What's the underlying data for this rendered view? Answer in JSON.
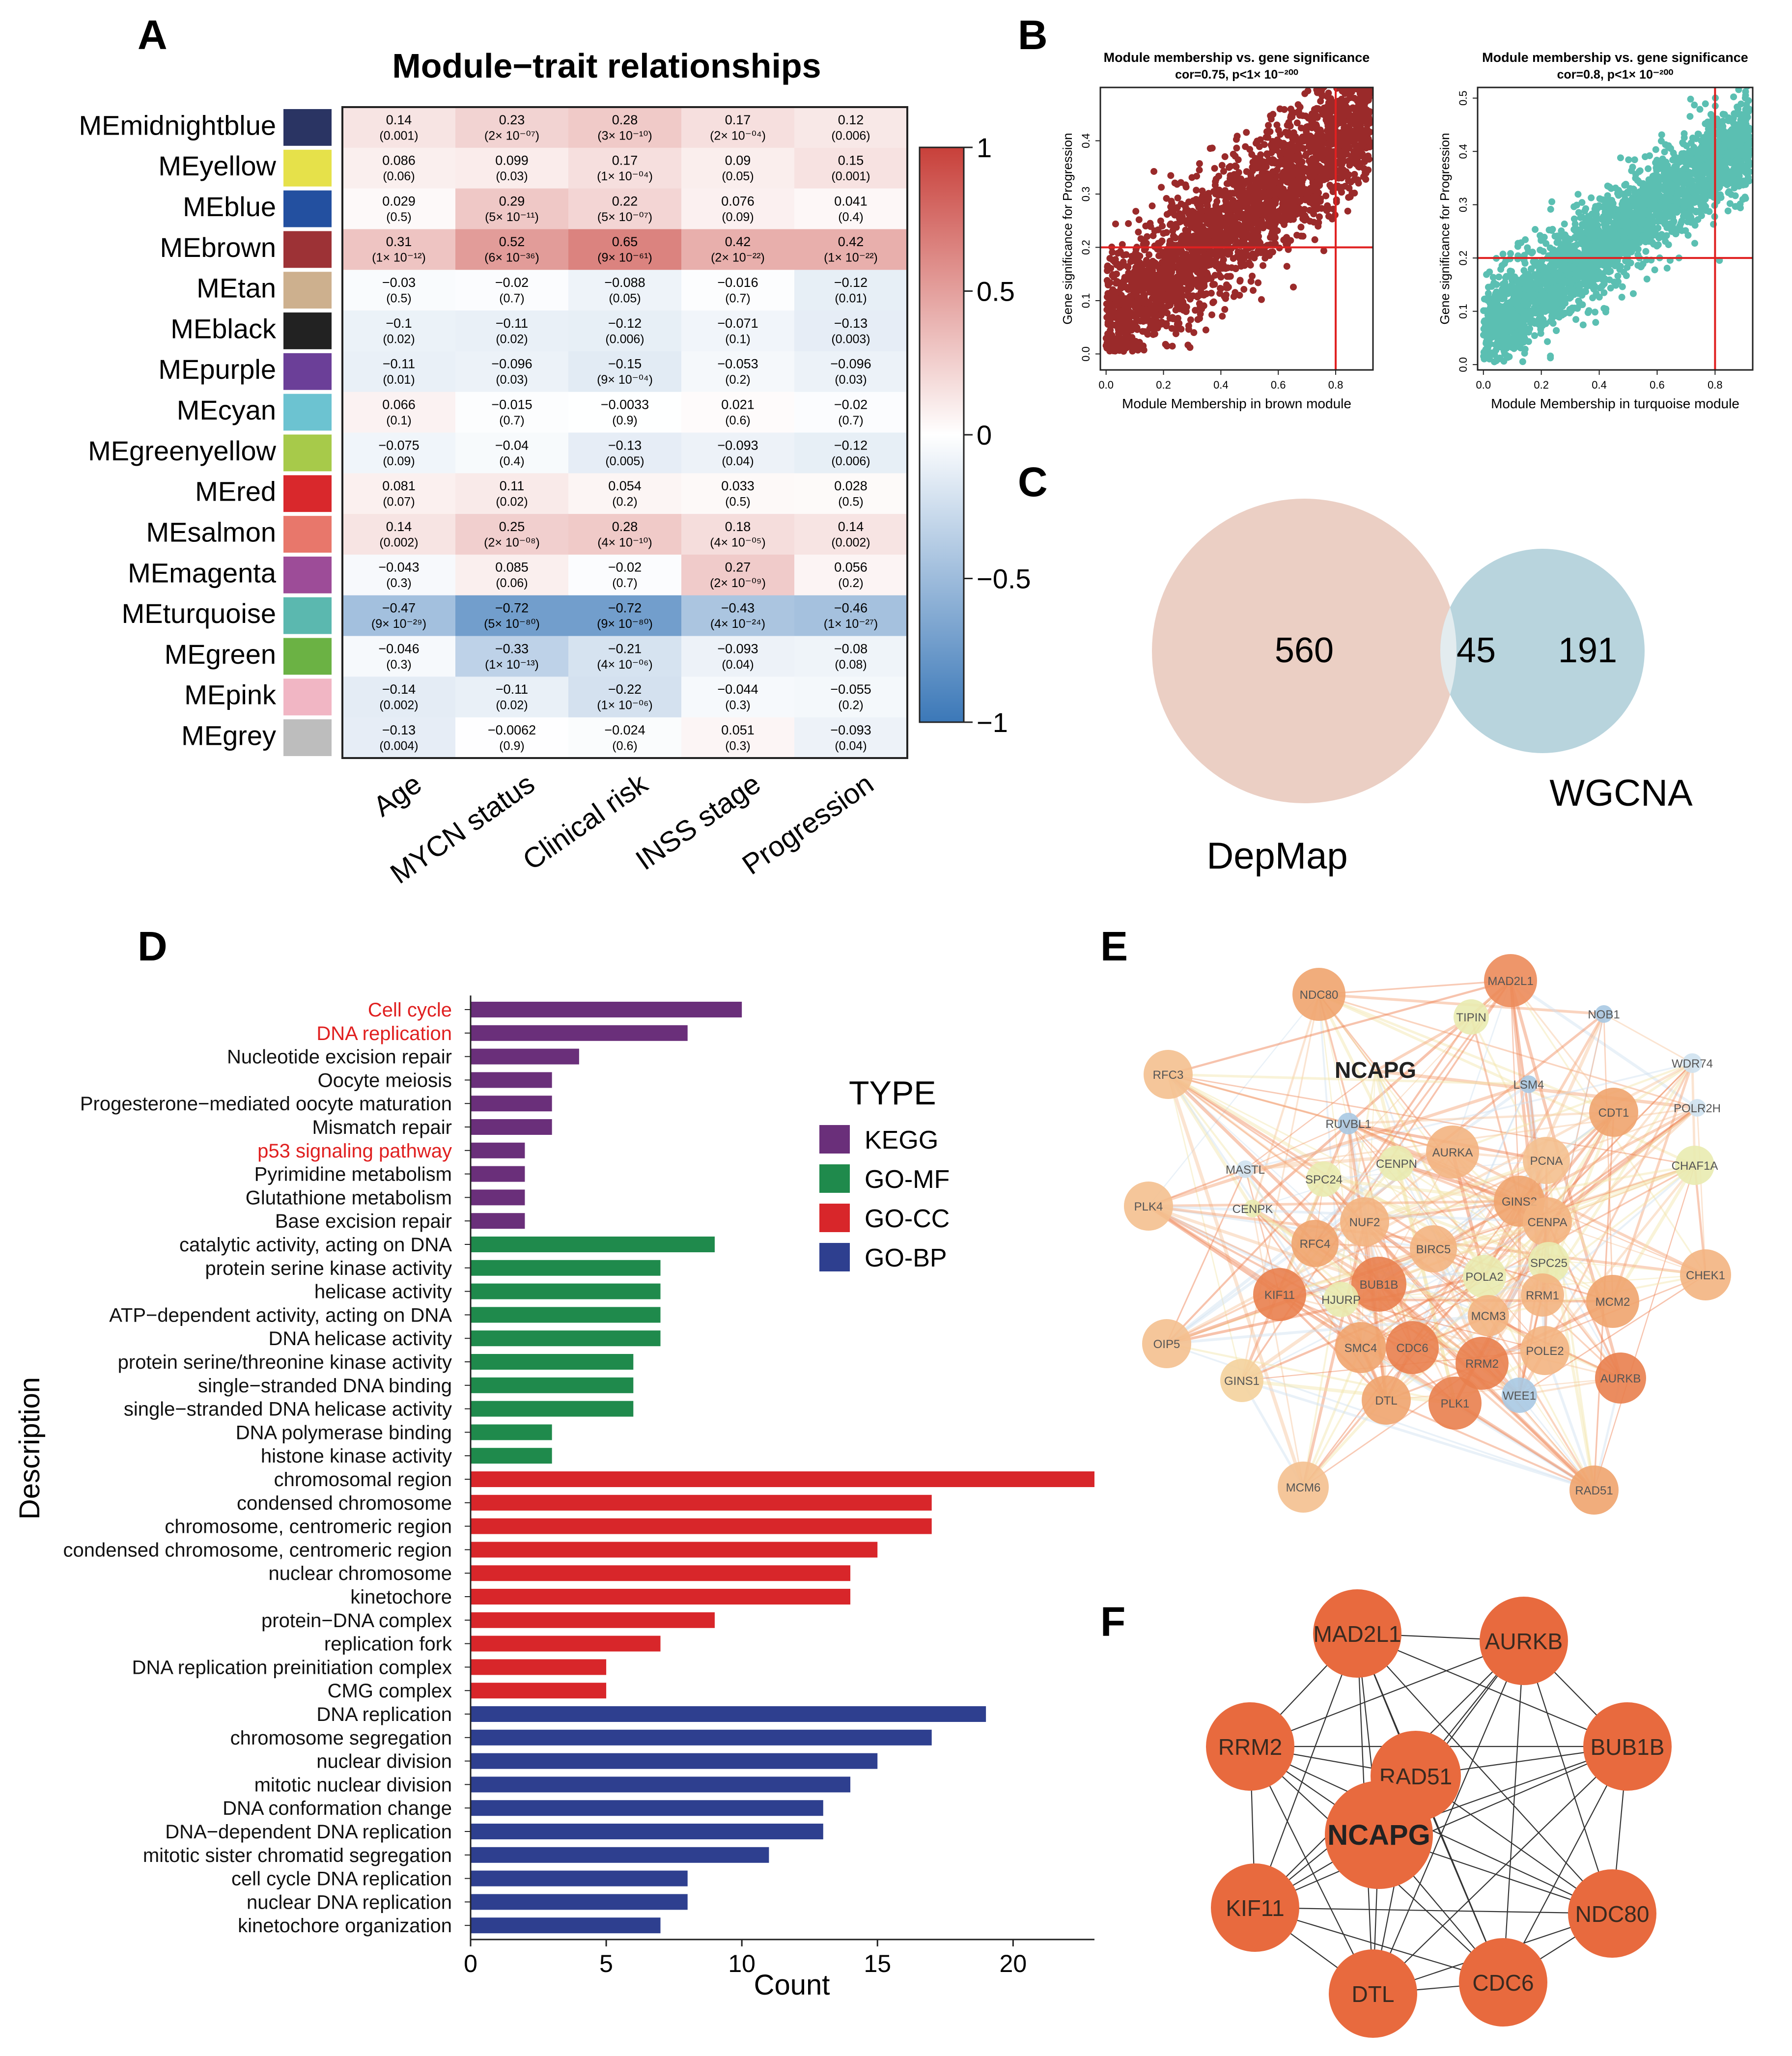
{
  "panel_letters": {
    "a": "A",
    "b": "B",
    "c": "C",
    "d": "D",
    "e": "E",
    "f": "F"
  },
  "heatmap": {
    "title": "Module−trait relationships",
    "modules": [
      {
        "name": "MEmidnightblue",
        "color": "#2a3463"
      },
      {
        "name": "MEyellow",
        "color": "#e6e14a"
      },
      {
        "name": "MEblue",
        "color": "#2350a0"
      },
      {
        "name": "MEbrown",
        "color": "#9d3236"
      },
      {
        "name": "MEtan",
        "color": "#cdb08e"
      },
      {
        "name": "MEblack",
        "color": "#222222"
      },
      {
        "name": "MEpurple",
        "color": "#6b3f98"
      },
      {
        "name": "MEcyan",
        "color": "#6cc3d1"
      },
      {
        "name": "MEgreenyellow",
        "color": "#a7ca4a"
      },
      {
        "name": "MEred",
        "color": "#d9282c"
      },
      {
        "name": "MEsalmon",
        "color": "#e8776b"
      },
      {
        "name": "MEmagenta",
        "color": "#9d4c98"
      },
      {
        "name": "MEturquoise",
        "color": "#5bb8af"
      },
      {
        "name": "MEgreen",
        "color": "#6bb244"
      },
      {
        "name": "MEpink",
        "color": "#f1b6c4"
      },
      {
        "name": "MEgrey",
        "color": "#bdbdbd"
      }
    ],
    "traits": [
      "Age",
      "MYCN status",
      "Clinical risk",
      "INSS stage",
      "Progression"
    ],
    "values": [
      [
        0.14,
        0.23,
        0.28,
        0.17,
        0.12
      ],
      [
        0.086,
        0.099,
        0.17,
        0.09,
        0.15
      ],
      [
        0.029,
        0.29,
        0.22,
        0.076,
        0.041
      ],
      [
        0.31,
        0.52,
        0.65,
        0.42,
        0.42
      ],
      [
        -0.03,
        -0.02,
        -0.088,
        -0.016,
        -0.12
      ],
      [
        -0.1,
        -0.11,
        -0.12,
        -0.071,
        -0.13
      ],
      [
        -0.11,
        -0.096,
        -0.15,
        -0.053,
        -0.096
      ],
      [
        0.066,
        -0.015,
        -0.0033,
        0.021,
        -0.02
      ],
      [
        -0.075,
        -0.04,
        -0.13,
        -0.093,
        -0.12
      ],
      [
        0.081,
        0.11,
        0.054,
        0.033,
        0.028
      ],
      [
        0.14,
        0.25,
        0.28,
        0.18,
        0.14
      ],
      [
        -0.043,
        0.085,
        -0.02,
        0.27,
        0.056
      ],
      [
        -0.47,
        -0.72,
        -0.72,
        -0.43,
        -0.46
      ],
      [
        -0.046,
        -0.33,
        -0.21,
        -0.093,
        -0.08
      ],
      [
        -0.14,
        -0.11,
        -0.22,
        -0.044,
        -0.055
      ],
      [
        -0.13,
        -0.0062,
        -0.024,
        0.051,
        -0.093
      ]
    ],
    "value_labels": [
      [
        "0.14",
        "0.23",
        "0.28",
        "0.17",
        "0.12"
      ],
      [
        "0.086",
        "0.099",
        "0.17",
        "0.09",
        "0.15"
      ],
      [
        "0.029",
        "0.29",
        "0.22",
        "0.076",
        "0.041"
      ],
      [
        "0.31",
        "0.52",
        "0.65",
        "0.42",
        "0.42"
      ],
      [
        "−0.03",
        "−0.02",
        "−0.088",
        "−0.016",
        "−0.12"
      ],
      [
        "−0.1",
        "−0.11",
        "−0.12",
        "−0.071",
        "−0.13"
      ],
      [
        "−0.11",
        "−0.096",
        "−0.15",
        "−0.053",
        "−0.096"
      ],
      [
        "0.066",
        "−0.015",
        "−0.0033",
        "0.021",
        "−0.02"
      ],
      [
        "−0.075",
        "−0.04",
        "−0.13",
        "−0.093",
        "−0.12"
      ],
      [
        "0.081",
        "0.11",
        "0.054",
        "0.033",
        "0.028"
      ],
      [
        "0.14",
        "0.25",
        "0.28",
        "0.18",
        "0.14"
      ],
      [
        "−0.043",
        "0.085",
        "−0.02",
        "0.27",
        "0.056"
      ],
      [
        "−0.47",
        "−0.72",
        "−0.72",
        "−0.43",
        "−0.46"
      ],
      [
        "−0.046",
        "−0.33",
        "−0.21",
        "−0.093",
        "−0.08"
      ],
      [
        "−0.14",
        "−0.11",
        "−0.22",
        "−0.044",
        "−0.055"
      ],
      [
        "−0.13",
        "−0.0062",
        "−0.024",
        "0.051",
        "−0.093"
      ]
    ],
    "pvalues": [
      [
        "(0.001)",
        "(2× 10⁻⁰⁷)",
        "(3× 10⁻¹⁰)",
        "(2× 10⁻⁰⁴)",
        "(0.006)"
      ],
      [
        "(0.06)",
        "(0.03)",
        "(1× 10⁻⁰⁴)",
        "(0.05)",
        "(0.001)"
      ],
      [
        "(0.5)",
        "(5× 10⁻¹¹)",
        "(5× 10⁻⁰⁷)",
        "(0.09)",
        "(0.4)"
      ],
      [
        "(1× 10⁻¹²)",
        "(6× 10⁻³⁶)",
        "(9× 10⁻⁶¹)",
        "(2× 10⁻²²)",
        "(1× 10⁻²²)"
      ],
      [
        "(0.5)",
        "(0.7)",
        "(0.05)",
        "(0.7)",
        "(0.01)"
      ],
      [
        "(0.02)",
        "(0.02)",
        "(0.006)",
        "(0.1)",
        "(0.003)"
      ],
      [
        "(0.01)",
        "(0.03)",
        "(9× 10⁻⁰⁴)",
        "(0.2)",
        "(0.03)"
      ],
      [
        "(0.1)",
        "(0.7)",
        "(0.9)",
        "(0.6)",
        "(0.7)"
      ],
      [
        "(0.09)",
        "(0.4)",
        "(0.005)",
        "(0.04)",
        "(0.006)"
      ],
      [
        "(0.07)",
        "(0.02)",
        "(0.2)",
        "(0.5)",
        "(0.5)"
      ],
      [
        "(0.002)",
        "(2× 10⁻⁰⁸)",
        "(4× 10⁻¹⁰)",
        "(4× 10⁻⁰⁵)",
        "(0.002)"
      ],
      [
        "(0.3)",
        "(0.06)",
        "(0.7)",
        "(2× 10⁻⁰⁹)",
        "(0.2)"
      ],
      [
        "(9× 10⁻²⁹)",
        "(5× 10⁻⁸⁰)",
        "(9× 10⁻⁸⁰)",
        "(4× 10⁻²⁴)",
        "(1× 10⁻²⁷)"
      ],
      [
        "(0.3)",
        "(1× 10⁻¹³)",
        "(4× 10⁻⁰⁶)",
        "(0.04)",
        "(0.08)"
      ],
      [
        "(0.002)",
        "(0.02)",
        "(1× 10⁻⁰⁶)",
        "(0.3)",
        "(0.2)"
      ],
      [
        "(0.004)",
        "(0.9)",
        "(0.6)",
        "(0.3)",
        "(0.04)"
      ]
    ],
    "colorbar": {
      "ticks": [
        "1",
        "0.5",
        "0",
        "−0.5",
        "−1"
      ],
      "low": "#3b78b8",
      "mid": "#ffffff",
      "high": "#c8403a"
    }
  },
  "scatter_plots": [
    {
      "title": "Module membership vs. gene significance",
      "subtitle": "cor=0.75, p<1× 10⁻²⁰⁰",
      "xlabel": "Module Membership in brown module",
      "ylabel": "Gene significance for  Progression",
      "xticks": [
        "0.0",
        "0.2",
        "0.4",
        "0.6",
        "0.8"
      ],
      "yticks": [
        "0.0",
        "0.1",
        "0.2",
        "0.3",
        "0.4"
      ],
      "xlim": [
        -0.02,
        0.93
      ],
      "ylim": [
        -0.03,
        0.5
      ],
      "point_color": "#9a2a2a",
      "vline": 0.8,
      "hline": 0.2,
      "cor": 0.75
    },
    {
      "title": "Module membership vs. gene significance",
      "subtitle": "cor=0.8, p<1× 10⁻²⁰⁰",
      "xlabel": "Module Membership in turquoise module",
      "ylabel": "Gene significance for  Progression",
      "xticks": [
        "0.0",
        "0.2",
        "0.4",
        "0.6",
        "0.8"
      ],
      "yticks": [
        "0.0",
        "0.1",
        "0.2",
        "0.3",
        "0.4",
        "0.5"
      ],
      "xlim": [
        -0.02,
        0.93
      ],
      "ylim": [
        -0.01,
        0.52
      ],
      "point_color": "#5bbfb2",
      "vline": 0.8,
      "hline": 0.2,
      "cor": 0.8
    }
  ],
  "venn": {
    "left_label": "DepMap",
    "right_label": "WGCNA",
    "left_only": "560",
    "overlap": "45",
    "right_only": "191",
    "left_color": "#ebcfc4",
    "right_color": "#b8d4dd"
  },
  "enrichment": {
    "xlabel": "Count",
    "ylabel": "Description",
    "xticks": [
      "0",
      "5",
      "10",
      "15",
      "20"
    ],
    "xlim": [
      0,
      23
    ],
    "legend_title": "TYPE",
    "types": [
      {
        "name": "KEGG",
        "color": "#6a2f7a"
      },
      {
        "name": "GO-MF",
        "color": "#1f8a4c"
      },
      {
        "name": "GO-CC",
        "color": "#d8262a"
      },
      {
        "name": "GO-BP",
        "color": "#2e3f8f"
      }
    ],
    "terms": [
      {
        "label": "Cell cycle",
        "count": 10,
        "type": 0,
        "highlight": true
      },
      {
        "label": "DNA replication",
        "count": 8,
        "type": 0,
        "highlight": true
      },
      {
        "label": "Nucleotide excision repair",
        "count": 4,
        "type": 0
      },
      {
        "label": "Oocyte meiosis",
        "count": 3,
        "type": 0
      },
      {
        "label": "Progesterone−mediated oocyte maturation",
        "count": 3,
        "type": 0
      },
      {
        "label": "Mismatch repair",
        "count": 3,
        "type": 0
      },
      {
        "label": "p53 signaling pathway",
        "count": 2,
        "type": 0,
        "highlight": true
      },
      {
        "label": "Pyrimidine metabolism",
        "count": 2,
        "type": 0
      },
      {
        "label": "Glutathione metabolism",
        "count": 2,
        "type": 0
      },
      {
        "label": "Base excision repair",
        "count": 2,
        "type": 0
      },
      {
        "label": "catalytic activity, acting on DNA",
        "count": 9,
        "type": 1
      },
      {
        "label": "protein serine kinase activity",
        "count": 7,
        "type": 1
      },
      {
        "label": "helicase activity",
        "count": 7,
        "type": 1
      },
      {
        "label": "ATP−dependent activity, acting on DNA",
        "count": 7,
        "type": 1
      },
      {
        "label": "DNA helicase activity",
        "count": 7,
        "type": 1
      },
      {
        "label": "protein serine/threonine kinase activity",
        "count": 6,
        "type": 1
      },
      {
        "label": "single−stranded DNA binding",
        "count": 6,
        "type": 1
      },
      {
        "label": "single−stranded DNA helicase activity",
        "count": 6,
        "type": 1
      },
      {
        "label": "DNA polymerase binding",
        "count": 3,
        "type": 1
      },
      {
        "label": "histone kinase activity",
        "count": 3,
        "type": 1
      },
      {
        "label": "chromosomal region",
        "count": 23,
        "type": 2
      },
      {
        "label": "condensed chromosome",
        "count": 17,
        "type": 2
      },
      {
        "label": "chromosome, centromeric region",
        "count": 17,
        "type": 2
      },
      {
        "label": "condensed chromosome, centromeric region",
        "count": 15,
        "type": 2
      },
      {
        "label": "nuclear chromosome",
        "count": 14,
        "type": 2
      },
      {
        "label": "kinetochore",
        "count": 14,
        "type": 2
      },
      {
        "label": "protein−DNA complex",
        "count": 9,
        "type": 2
      },
      {
        "label": "replication fork",
        "count": 7,
        "type": 2
      },
      {
        "label": "DNA replication preinitiation complex",
        "count": 5,
        "type": 2
      },
      {
        "label": "CMG complex",
        "count": 5,
        "type": 2
      },
      {
        "label": "DNA replication",
        "count": 19,
        "type": 3
      },
      {
        "label": "chromosome segregation",
        "count": 17,
        "type": 3
      },
      {
        "label": "nuclear division",
        "count": 15,
        "type": 3
      },
      {
        "label": "mitotic nuclear division",
        "count": 14,
        "type": 3
      },
      {
        "label": "DNA conformation change",
        "count": 13,
        "type": 3
      },
      {
        "label": "DNA−dependent DNA replication",
        "count": 13,
        "type": 3
      },
      {
        "label": "mitotic sister chromatid segregation",
        "count": 11,
        "type": 3
      },
      {
        "label": "cell cycle DNA replication",
        "count": 8,
        "type": 3
      },
      {
        "label": "nuclear DNA replication",
        "count": 8,
        "type": 3
      },
      {
        "label": "kinetochore organization",
        "count": 7,
        "type": 3
      }
    ]
  },
  "network_e": {
    "nodes": [
      {
        "label": "NDC80",
        "color": "#f0a46e"
      },
      {
        "label": "MAD2L1",
        "color": "#ec8b5a"
      },
      {
        "label": "TIPIN",
        "color": "#e9ebb0"
      },
      {
        "label": "NCAPG",
        "color": "#ffffff"
      },
      {
        "label": "NOB1",
        "color": "#a9c9e3"
      },
      {
        "label": "WDR74",
        "color": "#cfe2f0"
      },
      {
        "label": "RFC3",
        "color": "#f4c08f"
      },
      {
        "label": "LSM4",
        "color": "#a9c9e3"
      },
      {
        "label": "CDT1",
        "color": "#f0a46e"
      },
      {
        "label": "POLR2H",
        "color": "#cfe2f0"
      },
      {
        "label": "RUVBL1",
        "color": "#a9c9e3"
      },
      {
        "label": "AURKA",
        "color": "#f3b481"
      },
      {
        "label": "PCNA",
        "color": "#f4c08f"
      },
      {
        "label": "CENPN",
        "color": "#e9ebb0"
      },
      {
        "label": "CHAF1A",
        "color": "#e9ebb0"
      },
      {
        "label": "MASTL",
        "color": "#cfe2f0"
      },
      {
        "label": "SPC24",
        "color": "#e9ebb0"
      },
      {
        "label": "GINS2",
        "color": "#f0a46e"
      },
      {
        "label": "PLK4",
        "color": "#f4c08f"
      },
      {
        "label": "CENPK",
        "color": "#e9ebb0"
      },
      {
        "label": "NUF2",
        "color": "#f3b481"
      },
      {
        "label": "CENPA",
        "color": "#f3b481"
      },
      {
        "label": "RFC4",
        "color": "#f0a46e"
      },
      {
        "label": "BIRC5",
        "color": "#f3b481"
      },
      {
        "label": "SPC25",
        "color": "#e9ebb0"
      },
      {
        "label": "MCM2",
        "color": "#f0a46e"
      },
      {
        "label": "CHEK1",
        "color": "#f3b481"
      },
      {
        "label": "BUB1B",
        "color": "#e9804e"
      },
      {
        "label": "POLA2",
        "color": "#e9ebb0"
      },
      {
        "label": "KIF11",
        "color": "#e9804e"
      },
      {
        "label": "HJURP",
        "color": "#e9ebb0"
      },
      {
        "label": "RRM1",
        "color": "#f3b481"
      },
      {
        "label": "MCM3",
        "color": "#f3b481"
      },
      {
        "label": "OIP5",
        "color": "#f4c08f"
      },
      {
        "label": "SMC4",
        "color": "#f0a46e"
      },
      {
        "label": "CDC6",
        "color": "#e9804e"
      },
      {
        "label": "RRM2",
        "color": "#e9804e"
      },
      {
        "label": "POLE2",
        "color": "#f3b481"
      },
      {
        "label": "AURKB",
        "color": "#e9804e"
      },
      {
        "label": "GINS1",
        "color": "#f4d29c"
      },
      {
        "label": "DTL",
        "color": "#f0a46e"
      },
      {
        "label": "PLK1",
        "color": "#e9804e"
      },
      {
        "label": "WEE1",
        "color": "#a9c9e3"
      },
      {
        "label": "MCM6",
        "color": "#f4c08f"
      },
      {
        "label": "RAD51",
        "color": "#f0a46e"
      }
    ]
  },
  "network_f": {
    "nodes": [
      {
        "label": "MAD2L1"
      },
      {
        "label": "AURKB"
      },
      {
        "label": "RRM2"
      },
      {
        "label": "RAD51"
      },
      {
        "label": "BUB1B"
      },
      {
        "label": "NCAPG"
      },
      {
        "label": "KIF11"
      },
      {
        "label": "NDC80"
      },
      {
        "label": "DTL"
      },
      {
        "label": "CDC6"
      }
    ],
    "node_color": "#e86a3e"
  }
}
